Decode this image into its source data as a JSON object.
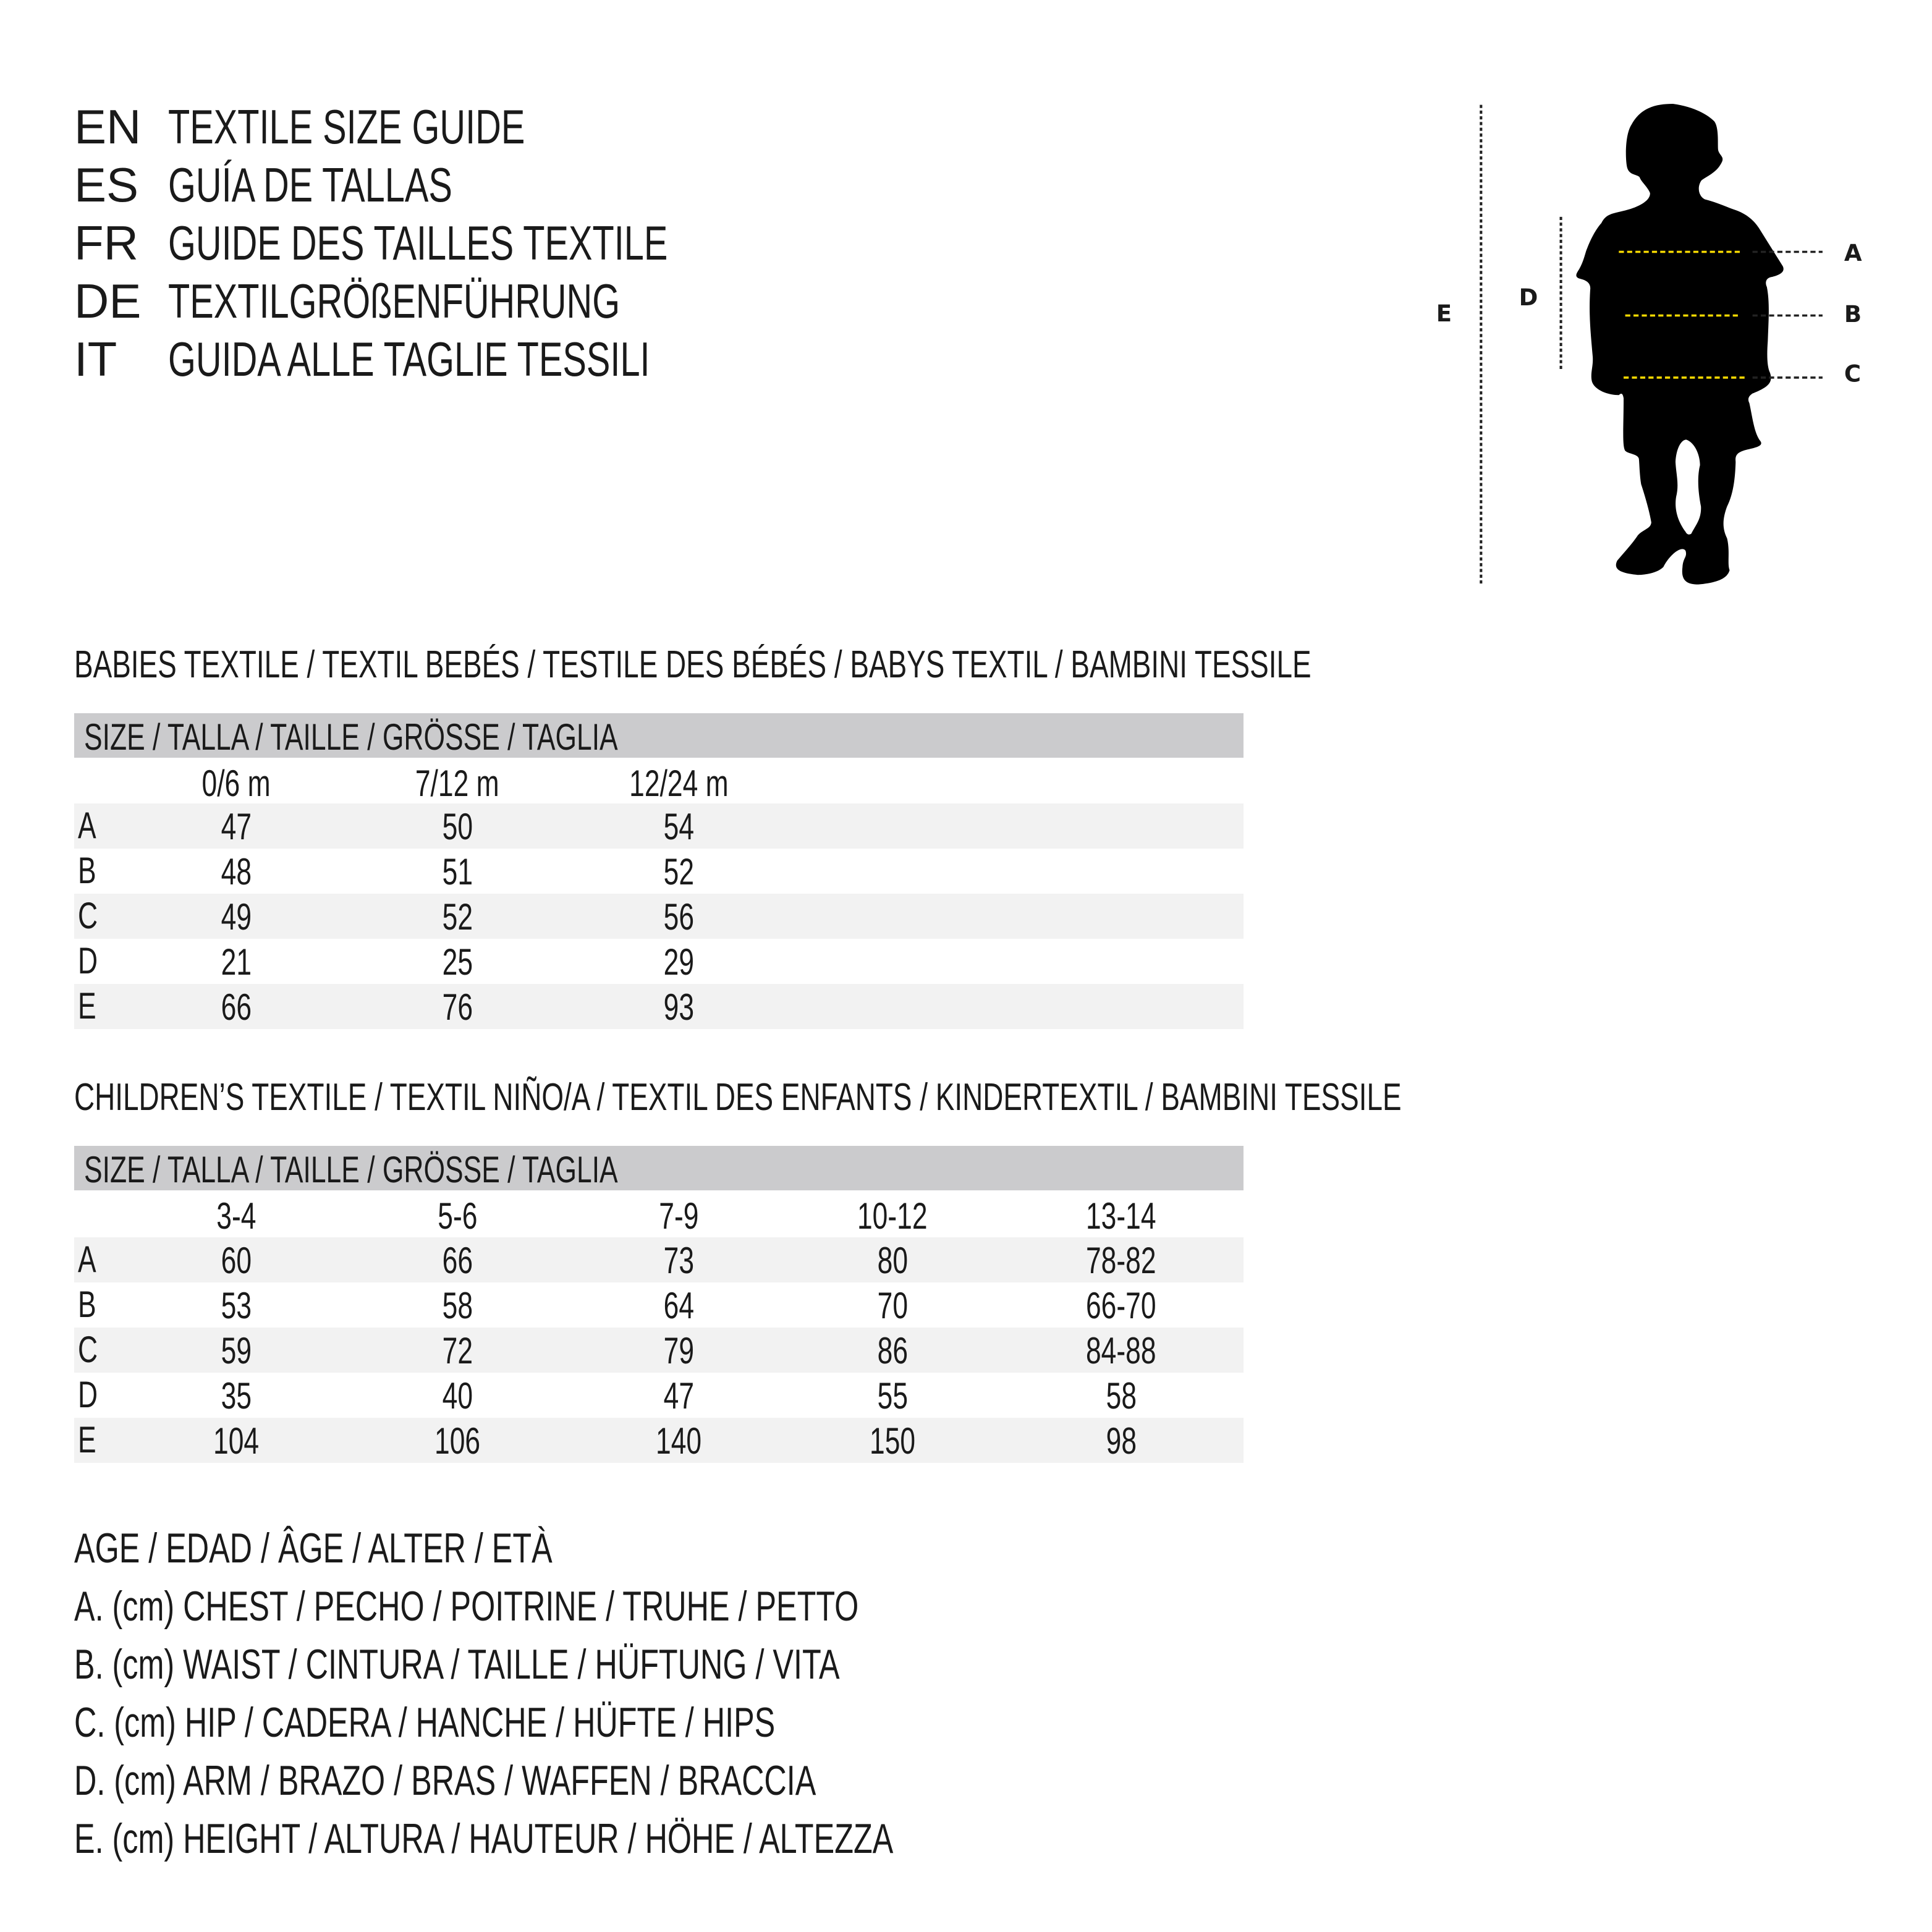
{
  "header": {
    "lines": [
      {
        "code": "EN",
        "text": "TEXTILE SIZE GUIDE"
      },
      {
        "code": "ES",
        "text": "GUÍA DE TALLAS"
      },
      {
        "code": "FR",
        "text": "GUIDE DES TAILLES TEXTILE"
      },
      {
        "code": "DE",
        "text": "TEXTILGRÖßENFÜHRUNG"
      },
      {
        "code": "IT",
        "text": "GUIDA ALLE TAGLIE TESSILI"
      }
    ]
  },
  "babies": {
    "title": "BABIES TEXTILE / TEXTIL BEBÉS / TESTILE DES BÉBÉS / BABYS TEXTIL / BAMBINI TESSILE",
    "size_header": "SIZE / TALLA / TAILLE / GRÖSSE / TAGLIA",
    "columns": [
      "0/6 m",
      "7/12 m",
      "12/24 m"
    ],
    "rows": [
      {
        "label": "A",
        "values": [
          "47",
          "50",
          "54"
        ]
      },
      {
        "label": "B",
        "values": [
          "48",
          "51",
          "52"
        ]
      },
      {
        "label": "C",
        "values": [
          "49",
          "52",
          "56"
        ]
      },
      {
        "label": "D",
        "values": [
          "21",
          "25",
          "29"
        ]
      },
      {
        "label": "E",
        "values": [
          "66",
          "76",
          "93"
        ]
      }
    ]
  },
  "children": {
    "title": "CHILDREN’S TEXTILE / TEXTIL NIÑO/A / TEXTIL DES ENFANTS / KINDERTEXTIL / BAMBINI TESSILE",
    "size_header": "SIZE / TALLA / TAILLE / GRÖSSE / TAGLIA",
    "columns": [
      "3-4",
      "5-6",
      "7-9",
      "10-12",
      "13-14"
    ],
    "rows": [
      {
        "label": "A",
        "values": [
          "60",
          "66",
          "73",
          "80",
          "78-82"
        ]
      },
      {
        "label": "B",
        "values": [
          "53",
          "58",
          "64",
          "70",
          "66-70"
        ]
      },
      {
        "label": "C",
        "values": [
          "59",
          "72",
          "79",
          "86",
          "84-88"
        ]
      },
      {
        "label": "D",
        "values": [
          "35",
          "40",
          "47",
          "55",
          "58"
        ]
      },
      {
        "label": "E",
        "values": [
          "104",
          "106",
          "140",
          "150",
          "98"
        ]
      }
    ]
  },
  "legend": [
    "AGE / EDAD / ÂGE / ALTER / ETÀ",
    "A. (cm) CHEST / PECHO / POITRINE / TRUHE / PETTO",
    "B. (cm) WAIST / CINTURA / TAILLE / HÜFTUNG / VITA",
    "C. (cm) HIP / CADERA / HANCHE / HÜFTE / HIPS",
    "D. (cm) ARM / BRAZO / BRAS / WAFFEN / BRACCIA",
    "E. (cm) HEIGHT / ALTURA / HAUTEUR / HÖHE / ALTEZZA"
  ],
  "figure": {
    "labels": {
      "A": "A",
      "B": "B",
      "C": "C",
      "D": "D",
      "E": "E"
    },
    "colors": {
      "measure_line": "#f5d800",
      "guide_line": "#222222",
      "silhouette": "#000000",
      "table_header": "#cbcbcd",
      "row_shade": "#f2f2f2"
    }
  }
}
